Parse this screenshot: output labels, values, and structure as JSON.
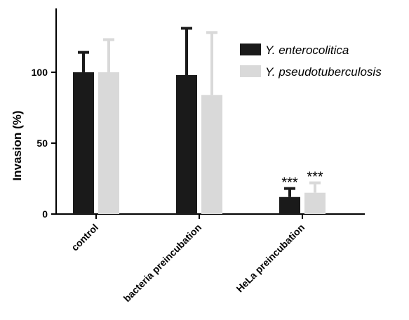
{
  "chart_data": {
    "type": "bar",
    "title": "",
    "xlabel": "",
    "ylabel": "Invasion (%)",
    "ylim": [
      0,
      145
    ],
    "yticks": [
      0,
      50,
      100
    ],
    "categories": [
      "control",
      "bacteria preincubation",
      "HeLa preincubation"
    ],
    "series": [
      {
        "name": "Y. enterocolitica",
        "color": "#1a1a1a",
        "values": [
          100,
          98,
          12
        ],
        "errors": [
          14,
          33,
          6
        ],
        "annotations": [
          "",
          "",
          "***"
        ]
      },
      {
        "name": "Y. pseudotuberculosis",
        "color": "#d9d9d9",
        "values": [
          100,
          84,
          15
        ],
        "errors": [
          23,
          44,
          7
        ],
        "annotations": [
          "",
          "",
          "***"
        ]
      }
    ],
    "legend_position": "top-right",
    "grid": false
  }
}
